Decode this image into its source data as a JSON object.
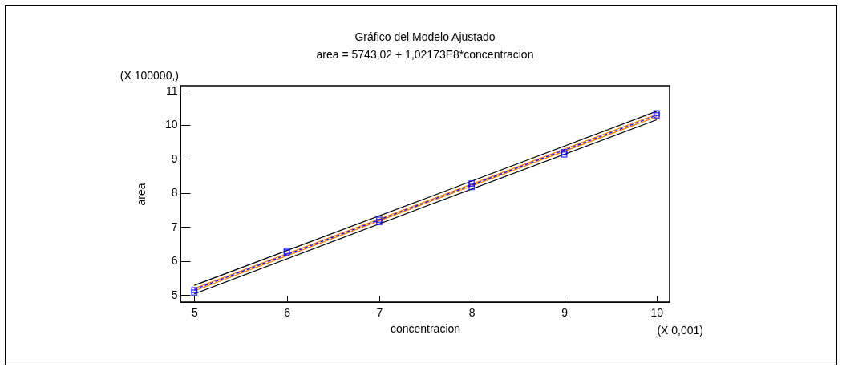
{
  "chart_data": {
    "type": "scatter",
    "title": "Gráfico del Modelo Ajustado",
    "subtitle": "area = 5743,02 + 1,02173E8*concentracion",
    "xlabel": "concentracion",
    "ylabel": "area",
    "annotations": [
      "(X 100000,)",
      "(X 0,001)"
    ],
    "xlim": [
      4.85,
      10.14
    ],
    "ylim": [
      4.8,
      11.15
    ],
    "xticks": [
      5,
      6,
      7,
      8,
      9,
      10
    ],
    "yticks": [
      5,
      6,
      7,
      8,
      9,
      10,
      11
    ],
    "series": [
      {
        "type": "line",
        "color": "#000000",
        "x": [
          5,
          7.5,
          10
        ],
        "values": [
          5.04,
          7.61,
          10.15
        ]
      },
      {
        "type": "line",
        "color": "#000000",
        "x": [
          5,
          7.5,
          10
        ],
        "values": [
          5.29,
          7.84,
          10.4
        ]
      },
      {
        "type": "line",
        "color": "#ff8000",
        "x": [
          5,
          7.5,
          10
        ],
        "values": [
          5.13,
          7.7,
          10.24
        ]
      },
      {
        "type": "line",
        "color": "#ff8000",
        "x": [
          5,
          7.5,
          10
        ],
        "values": [
          5.2,
          7.75,
          10.31
        ]
      },
      {
        "type": "line",
        "color": "#0000ff",
        "line_style": "dashed",
        "x": [
          5,
          10
        ],
        "values": [
          5.17,
          10.28
        ]
      },
      {
        "color": "#0000ff",
        "marker": "square",
        "x": [
          5,
          5,
          6,
          6,
          7,
          7,
          8,
          8,
          9,
          9,
          10,
          10
        ],
        "values": [
          5.08,
          5.15,
          6.26,
          6.3,
          7.15,
          7.22,
          8.18,
          8.28,
          9.13,
          9.2,
          10.28,
          10.34
        ]
      }
    ]
  }
}
